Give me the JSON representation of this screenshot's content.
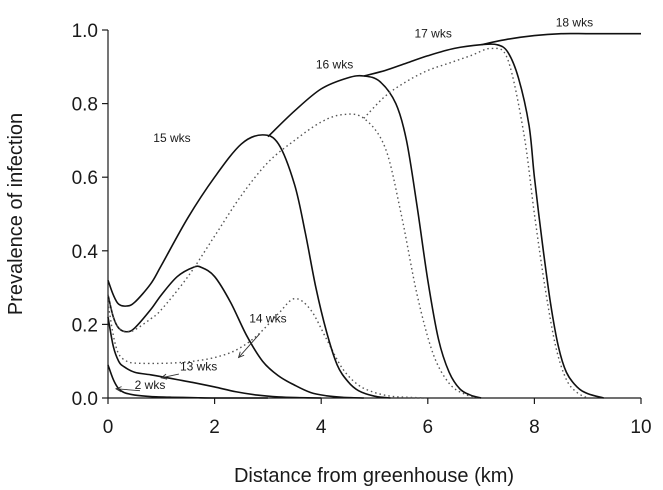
{
  "chart_data": {
    "type": "line",
    "title": "",
    "xlabel": "Distance from greenhouse (km)",
    "ylabel": "Prevalence of infection",
    "xlim": [
      0,
      10
    ],
    "ylim": [
      0,
      1.0
    ],
    "x_ticks": [
      0,
      2,
      4,
      6,
      8,
      10
    ],
    "x_tick_labels": [
      "0",
      "2",
      "4",
      "6",
      "8",
      "10"
    ],
    "y_ticks": [
      0,
      0.2,
      0.4,
      0.6,
      0.8,
      1.0
    ],
    "y_tick_labels": [
      "0.0",
      "0.2",
      "0.4",
      "0.6",
      "0.8",
      "1.0"
    ],
    "grid": false,
    "legend": "none",
    "series": [
      {
        "name": "2 wks",
        "style": "solid",
        "x": [
          0,
          0.1,
          0.2,
          0.3,
          0.5,
          0.8,
          1.2,
          1.6,
          2.0,
          2.5,
          3.0
        ],
        "y": [
          0.09,
          0.05,
          0.025,
          0.015,
          0.008,
          0.004,
          0.002,
          0.001,
          0,
          0,
          0
        ]
      },
      {
        "name": "13 wks",
        "style": "solid",
        "x": [
          0,
          0.1,
          0.2,
          0.3,
          0.5,
          0.8,
          1.0,
          1.3,
          1.6,
          2.0,
          2.4,
          2.8,
          3.2,
          3.6,
          4.0
        ],
        "y": [
          0.22,
          0.14,
          0.1,
          0.085,
          0.07,
          0.063,
          0.058,
          0.05,
          0.042,
          0.03,
          0.017,
          0.008,
          0.003,
          0.001,
          0
        ]
      },
      {
        "name": "",
        "style": "dotted",
        "x": [
          0,
          0.1,
          0.2,
          0.35,
          0.5,
          0.8,
          1.2,
          1.6,
          2.0,
          2.4,
          2.8,
          3.2,
          3.5,
          3.8,
          4.1,
          4.4,
          4.7,
          5.0,
          5.3,
          5.6,
          6.0
        ],
        "y": [
          0.26,
          0.17,
          0.12,
          0.1,
          0.095,
          0.094,
          0.095,
          0.1,
          0.11,
          0.13,
          0.17,
          0.23,
          0.27,
          0.24,
          0.16,
          0.08,
          0.035,
          0.015,
          0.005,
          0.002,
          0
        ]
      },
      {
        "name": "14 wks",
        "style": "solid",
        "x": [
          0,
          0.1,
          0.2,
          0.35,
          0.5,
          0.8,
          1.0,
          1.3,
          1.6,
          1.75,
          2.0,
          2.3,
          2.6,
          2.9,
          3.2,
          3.5,
          3.8,
          4.1,
          4.4,
          4.8
        ],
        "y": [
          0.28,
          0.22,
          0.19,
          0.18,
          0.19,
          0.24,
          0.28,
          0.33,
          0.355,
          0.355,
          0.33,
          0.26,
          0.17,
          0.1,
          0.06,
          0.035,
          0.015,
          0.006,
          0.002,
          0
        ]
      },
      {
        "name": "",
        "style": "dotted",
        "x": [
          0,
          0.1,
          0.2,
          0.35,
          0.5,
          0.8,
          1.0,
          1.5,
          2.0,
          2.5,
          3.0,
          3.5,
          4.0,
          4.4,
          4.8,
          5.2,
          5.5,
          5.8,
          6.1,
          6.4,
          6.7,
          7.0
        ],
        "y": [
          0.28,
          0.22,
          0.19,
          0.18,
          0.185,
          0.215,
          0.24,
          0.33,
          0.44,
          0.55,
          0.64,
          0.7,
          0.75,
          0.77,
          0.76,
          0.68,
          0.5,
          0.28,
          0.12,
          0.04,
          0.01,
          0
        ]
      },
      {
        "name": "15 wks",
        "style": "solid",
        "x": [
          0,
          0.1,
          0.2,
          0.35,
          0.5,
          0.8,
          1.0,
          1.5,
          2.0,
          2.5,
          2.9,
          3.2,
          3.5,
          3.7,
          3.9,
          4.1,
          4.3,
          4.5,
          4.7,
          5.0,
          5.3
        ],
        "y": [
          0.32,
          0.28,
          0.255,
          0.25,
          0.26,
          0.31,
          0.36,
          0.49,
          0.6,
          0.69,
          0.715,
          0.69,
          0.58,
          0.45,
          0.3,
          0.18,
          0.09,
          0.045,
          0.02,
          0.005,
          0
        ]
      },
      {
        "name": "16 wks",
        "style": "solid",
        "x": [
          3.0,
          3.5,
          4.0,
          4.5,
          4.8,
          5.1,
          5.4,
          5.6,
          5.8,
          6.0,
          6.2,
          6.4,
          6.6,
          6.8,
          7.0
        ],
        "y": [
          0.71,
          0.78,
          0.84,
          0.87,
          0.875,
          0.86,
          0.8,
          0.7,
          0.52,
          0.32,
          0.16,
          0.07,
          0.025,
          0.008,
          0
        ]
      },
      {
        "name": "",
        "style": "dotted",
        "x": [
          4.8,
          5.2,
          5.6,
          6.0,
          6.4,
          6.8,
          7.2,
          7.5,
          7.8,
          8.0,
          8.2,
          8.4,
          8.6,
          8.8,
          9.0
        ],
        "y": [
          0.76,
          0.82,
          0.86,
          0.89,
          0.91,
          0.93,
          0.95,
          0.92,
          0.72,
          0.5,
          0.3,
          0.14,
          0.05,
          0.015,
          0
        ]
      },
      {
        "name": "17 wks",
        "style": "solid",
        "x": [
          4.8,
          5.2,
          5.6,
          6.0,
          6.5,
          7.0,
          7.3,
          7.5,
          7.7,
          7.9,
          8.0,
          8.15,
          8.3,
          8.45,
          8.6,
          8.8,
          9.0,
          9.3
        ],
        "y": [
          0.875,
          0.89,
          0.91,
          0.93,
          0.95,
          0.96,
          0.96,
          0.94,
          0.87,
          0.74,
          0.6,
          0.42,
          0.26,
          0.14,
          0.07,
          0.03,
          0.012,
          0
        ]
      },
      {
        "name": "18 wks",
        "style": "solid",
        "x": [
          7.0,
          7.5,
          8.0,
          8.5,
          9.0,
          9.5,
          10.0
        ],
        "y": [
          0.96,
          0.975,
          0.985,
          0.99,
          0.99,
          0.99,
          0.99
        ]
      }
    ],
    "annotations": [
      {
        "text": "2 wks"
      },
      {
        "text": "13 wks"
      },
      {
        "text": "14 wks"
      },
      {
        "text": "15 wks"
      },
      {
        "text": "16 wks"
      },
      {
        "text": "17 wks"
      },
      {
        "text": "18 wks"
      }
    ]
  }
}
